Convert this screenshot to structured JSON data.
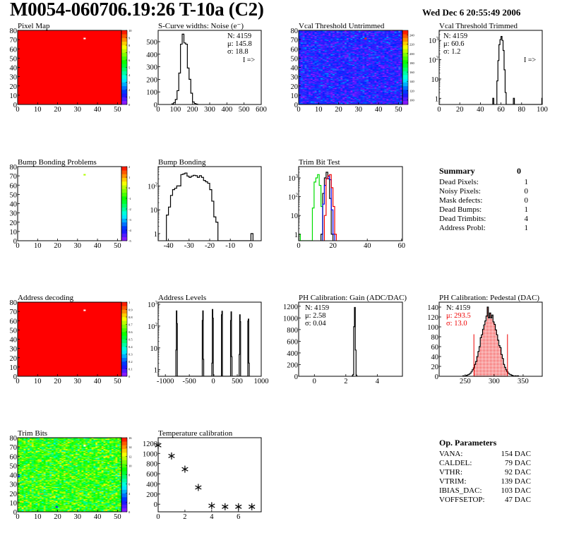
{
  "header": {
    "title": "M0054-060706.19:26 T-10a (C2)",
    "date": "Wed Dec  6 20:55:49 2006"
  },
  "summary": {
    "title": "Summary",
    "total": "0",
    "rows": [
      {
        "label": "Dead Pixels:",
        "value": "1"
      },
      {
        "label": "Noisy Pixels:",
        "value": "0"
      },
      {
        "label": "Mask defects:",
        "value": "0"
      },
      {
        "label": "Dead Bumps:",
        "value": "1"
      },
      {
        "label": "Dead Trimbits:",
        "value": "4"
      },
      {
        "label": "Address Probl:",
        "value": "1"
      }
    ]
  },
  "op_parameters": {
    "title": "Op. Parameters",
    "rows": [
      {
        "label": "VANA:",
        "value": "154 DAC"
      },
      {
        "label": "CALDEL:",
        "value": "79 DAC"
      },
      {
        "label": "VTHR:",
        "value": "92 DAC"
      },
      {
        "label": "VTRIM:",
        "value": "139 DAC"
      },
      {
        "label": "IBIAS_DAC:",
        "value": "103 DAC"
      },
      {
        "label": "VOFFSETOP:",
        "value": "47 DAC"
      }
    ]
  },
  "chart_data": [
    {
      "type": "heatmap",
      "title": "Pixel Map",
      "xlim": [
        0,
        52
      ],
      "ylim": [
        0,
        80
      ],
      "zlim": [
        0,
        10
      ],
      "xticks": [
        0,
        10,
        20,
        30,
        40,
        50
      ],
      "yticks": [
        0,
        10,
        20,
        30,
        40,
        50,
        60,
        70,
        80
      ],
      "palette_ticks": [
        0,
        1,
        2,
        3,
        4,
        5,
        6,
        7,
        8,
        9,
        10
      ],
      "fill_value": 10,
      "special_pixels": [
        {
          "col": 33,
          "row": 71,
          "value": 0
        }
      ]
    },
    {
      "type": "bar",
      "title": "S-Curve widths: Noise (e⁻)",
      "xlim": [
        0,
        600
      ],
      "ylim": [
        0,
        590
      ],
      "yscale": "linear",
      "xticks": [
        0,
        100,
        200,
        300,
        400,
        500,
        600
      ],
      "yticks": [
        0,
        100,
        200,
        300,
        400,
        500
      ],
      "stats": [
        "N: 4159",
        "μ: 145.8",
        "σ: 18.8"
      ],
      "overflow_note": "I =>",
      "series": [
        {
          "color": "#000000",
          "bin_width": 10,
          "bins": [
            [
              80,
              5
            ],
            [
              90,
              15
            ],
            [
              100,
              40
            ],
            [
              110,
              110
            ],
            [
              120,
              250
            ],
            [
              130,
              480
            ],
            [
              140,
              560
            ],
            [
              150,
              490
            ],
            [
              160,
              480
            ],
            [
              170,
              290
            ],
            [
              180,
              200
            ],
            [
              190,
              90
            ],
            [
              200,
              20
            ],
            [
              210,
              8
            ],
            [
              220,
              3
            ]
          ]
        }
      ]
    },
    {
      "type": "heatmap",
      "title": "Vcal Threshold Untrimmed",
      "xlim": [
        0,
        52
      ],
      "ylim": [
        0,
        80
      ],
      "zlim": [
        90,
        250
      ],
      "xticks": [
        0,
        10,
        20,
        30,
        40,
        50
      ],
      "yticks": [
        0,
        10,
        20,
        30,
        40,
        50,
        60,
        70,
        80
      ],
      "palette_ticks": [
        100,
        120,
        140,
        160,
        180,
        200,
        220,
        240
      ],
      "typical_value": 110,
      "spread": 9,
      "special_pixels": [
        {
          "col": 33,
          "row": 71,
          "value": 245
        }
      ]
    },
    {
      "type": "bar",
      "title": "Vcal Threshold Trimmed",
      "xlim": [
        0,
        100
      ],
      "ylim": [
        0.48,
        3300
      ],
      "yscale": "log",
      "xticks": [
        0,
        20,
        40,
        60,
        80,
        100
      ],
      "yticks": [
        1,
        10,
        100,
        1000
      ],
      "stats": [
        "N: 4159",
        "μ: 60.6",
        "σ:  1.2"
      ],
      "overflow_note": "I =>",
      "series": [
        {
          "color": "#000000",
          "bin_width": 1,
          "bins": [
            [
              52,
              1
            ],
            [
              56,
              8
            ],
            [
              57,
              90
            ],
            [
              58,
              600
            ],
            [
              59,
              1100
            ],
            [
              60,
              1600
            ],
            [
              61,
              1000
            ],
            [
              62,
              300
            ],
            [
              63,
              30
            ],
            [
              64,
              2
            ],
            [
              72,
              1
            ],
            [
              99.6,
              1
            ]
          ]
        }
      ]
    },
    {
      "type": "heatmap",
      "title": "Bump Bonding Problems",
      "xlim": [
        0,
        52
      ],
      "ylim": [
        0,
        80
      ],
      "zlim": [
        -5,
        2
      ],
      "xticks": [
        0,
        10,
        20,
        30,
        40,
        50
      ],
      "yticks": [
        0,
        10,
        20,
        30,
        40,
        50,
        60,
        70,
        80
      ],
      "palette_ticks": [
        -5,
        -4,
        -3,
        -2,
        -1,
        0,
        1,
        2
      ],
      "fill_value": null,
      "special_pixels": [
        {
          "col": 33,
          "row": 71,
          "value": 0
        }
      ]
    },
    {
      "type": "bar",
      "title": "Bump Bonding",
      "xlim": [
        -45,
        5
      ],
      "ylim": [
        0.5,
        650
      ],
      "yscale": "log",
      "xticks": [
        -40,
        -30,
        -20,
        -10,
        0
      ],
      "yticks": [
        1,
        10,
        100
      ],
      "series": [
        {
          "color": "#000000",
          "bin_width": 1,
          "bins": [
            [
              -41,
              6
            ],
            [
              -40,
              13
            ],
            [
              -39,
              40
            ],
            [
              -38,
              70
            ],
            [
              -37,
              80
            ],
            [
              -36,
              100
            ],
            [
              -35,
              100
            ],
            [
              -34,
              300
            ],
            [
              -33,
              320
            ],
            [
              -32,
              350
            ],
            [
              -31,
              260
            ],
            [
              -30,
              230
            ],
            [
              -29,
              260
            ],
            [
              -28,
              280
            ],
            [
              -27,
              270
            ],
            [
              -26,
              230
            ],
            [
              -25,
              270
            ],
            [
              -24,
              230
            ],
            [
              -23,
              170
            ],
            [
              -22,
              150
            ],
            [
              -21,
              130
            ],
            [
              -20,
              70
            ],
            [
              -19,
              23
            ],
            [
              -18,
              5
            ],
            [
              -17,
              3
            ],
            [
              0,
              1
            ]
          ]
        }
      ]
    },
    {
      "type": "bar",
      "title": "Trim Bit Test",
      "xlim": [
        0,
        60.5
      ],
      "ylim": [
        0.45,
        4000
      ],
      "yscale": "log",
      "xticks": [
        0,
        20,
        40,
        60
      ],
      "yticks": [
        1,
        10,
        100,
        1000
      ],
      "series": [
        {
          "color": "#00dd00",
          "bin_width": 1,
          "bins": [
            [
              0,
              1
            ],
            [
              8,
              25
            ],
            [
              9,
              600
            ],
            [
              10,
              1000
            ],
            [
              11,
              1500
            ],
            [
              12,
              400
            ],
            [
              13,
              30
            ]
          ]
        },
        {
          "color": "#000000",
          "bin_width": 1,
          "bins": [
            [
              13,
              1
            ],
            [
              14,
              150
            ],
            [
              15,
              1000
            ],
            [
              16,
              2000
            ],
            [
              17,
              900
            ],
            [
              18,
              80
            ],
            [
              19,
              1
            ]
          ]
        },
        {
          "color": "#0000ee",
          "bin_width": 1,
          "bins": [
            [
              14,
              40
            ],
            [
              15,
              400
            ],
            [
              16,
              900
            ],
            [
              17,
              1200
            ],
            [
              18,
              800
            ],
            [
              19,
              20
            ],
            [
              20,
              1
            ]
          ]
        },
        {
          "color": "#ee0000",
          "bin_width": 1,
          "bins": [
            [
              15,
              10
            ],
            [
              16,
              900
            ],
            [
              17,
              1300
            ],
            [
              18,
              1500
            ],
            [
              19,
              300
            ],
            [
              20,
              30
            ],
            [
              21,
              1
            ]
          ]
        }
      ]
    },
    {
      "type": "heatmap",
      "title": "Address decoding",
      "xlim": [
        0,
        52
      ],
      "ylim": [
        0,
        80
      ],
      "zlim": [
        0,
        1
      ],
      "xticks": [
        0,
        10,
        20,
        30,
        40,
        50
      ],
      "yticks": [
        0,
        10,
        20,
        30,
        40,
        50,
        60,
        70,
        80
      ],
      "palette_ticks": [
        0,
        0.1,
        0.2,
        0.3,
        0.4,
        0.5,
        0.6,
        0.7,
        0.8,
        0.9,
        1
      ],
      "fill_value": 1,
      "special_pixels": [
        {
          "col": 33,
          "row": 71,
          "value": 0
        }
      ]
    },
    {
      "type": "bar",
      "title": "Address Levels",
      "xlim": [
        -1150,
        1000
      ],
      "ylim": [
        0.5,
        1250
      ],
      "yscale": "log",
      "xticks": [
        -1000,
        -500,
        0,
        500,
        1000
      ],
      "yticks": [
        1,
        10,
        100,
        1000
      ],
      "series": [
        {
          "color": "#000000",
          "bin_width": 10,
          "bins": [
            [
              -780,
              8
            ],
            [
              -770,
              500
            ],
            [
              -760,
              130
            ],
            [
              -230,
              180
            ],
            [
              -220,
              500
            ],
            [
              -210,
              3
            ],
            [
              -30,
              2
            ],
            [
              -20,
              580
            ],
            [
              -10,
              230
            ],
            [
              0,
              0.6
            ],
            [
              170,
              330
            ],
            [
              180,
              480
            ],
            [
              360,
              180
            ],
            [
              370,
              450
            ],
            [
              380,
              4
            ],
            [
              540,
              5
            ],
            [
              550,
              330
            ],
            [
              560,
              160
            ],
            [
              720,
              170
            ],
            [
              730,
              210
            ],
            [
              740,
              2
            ]
          ]
        }
      ]
    },
    {
      "type": "bar",
      "title": "PH Calibration: Gain (ADC/DAC)",
      "xlim": [
        -1,
        5.6
      ],
      "ylim": [
        0,
        1270
      ],
      "yscale": "linear",
      "xticks": [
        0,
        2,
        4
      ],
      "yticks": [
        0,
        200,
        400,
        600,
        800,
        1000,
        1200
      ],
      "stats": [
        "N: 4159",
        "μ: 2.58",
        "σ: 0.04"
      ],
      "series": [
        {
          "color": "#000000",
          "bin_width": 0.05,
          "bins": [
            [
              2.4,
              10
            ],
            [
              2.45,
              30
            ],
            [
              2.5,
              850
            ],
            [
              2.55,
              1180
            ],
            [
              2.6,
              450
            ],
            [
              2.65,
              20
            ]
          ]
        }
      ]
    },
    {
      "type": "bar",
      "title": "PH Calibration: Pedestal (DAC)",
      "xlim": [
        205,
        383
      ],
      "ylim": [
        0,
        150
      ],
      "yscale": "linear",
      "xticks": [
        250,
        300,
        350
      ],
      "yticks": [
        0,
        20,
        40,
        60,
        80,
        100,
        120,
        140
      ],
      "stats": [
        "N: 4159",
        "μ: 293.5",
        "σ: 13.0"
      ],
      "stats_fit_color": "#ee0000",
      "fit_range": [
        265,
        323
      ],
      "fit_color": "#ee0000",
      "series": [
        {
          "color": "#000000",
          "bin_width": 2,
          "bins": [
            [
              246,
              1
            ],
            [
              250,
              1
            ],
            [
              252,
              2
            ],
            [
              254,
              3
            ],
            [
              256,
              4
            ],
            [
              258,
              6
            ],
            [
              260,
              9
            ],
            [
              262,
              13
            ],
            [
              264,
              17
            ],
            [
              266,
              24
            ],
            [
              268,
              30
            ],
            [
              270,
              40
            ],
            [
              272,
              50
            ],
            [
              274,
              60
            ],
            [
              276,
              78
            ],
            [
              278,
              84
            ],
            [
              280,
              95
            ],
            [
              282,
              104
            ],
            [
              284,
              112
            ],
            [
              286,
              122
            ],
            [
              288,
              140
            ],
            [
              290,
              118
            ],
            [
              292,
              128
            ],
            [
              294,
              118
            ],
            [
              296,
              124
            ],
            [
              298,
              110
            ],
            [
              300,
              105
            ],
            [
              302,
              94
            ],
            [
              304,
              84
            ],
            [
              306,
              73
            ],
            [
              308,
              62
            ],
            [
              310,
              58
            ],
            [
              312,
              44
            ],
            [
              314,
              36
            ],
            [
              316,
              24
            ],
            [
              318,
              18
            ],
            [
              320,
              13
            ],
            [
              322,
              9
            ],
            [
              324,
              6
            ],
            [
              326,
              4
            ],
            [
              328,
              3
            ],
            [
              330,
              2
            ],
            [
              332,
              1
            ],
            [
              336,
              1
            ],
            [
              340,
              1
            ]
          ]
        }
      ]
    },
    {
      "type": "heatmap",
      "title": "Trim Bits",
      "xlim": [
        0,
        52
      ],
      "ylim": [
        0,
        80
      ],
      "zlim": [
        0,
        16
      ],
      "xticks": [
        0,
        10,
        20,
        30,
        40,
        50
      ],
      "yticks": [
        0,
        10,
        20,
        30,
        40,
        50,
        60,
        70,
        80
      ],
      "palette_ticks": [
        0,
        2,
        4,
        6,
        8,
        10,
        12,
        14,
        16
      ],
      "typical_value": 9.5,
      "spread": 1.6,
      "special_pixels": [
        {
          "col": 33,
          "row": 71,
          "value": -1
        },
        {
          "col": 0,
          "row": 38,
          "value": 3
        },
        {
          "col": 19,
          "row": 5,
          "value": 2
        }
      ]
    },
    {
      "type": "scatter",
      "title": "Temperature calibration",
      "xlim": [
        0,
        7.7
      ],
      "ylim": [
        -150,
        1310
      ],
      "xticks": [
        0,
        2,
        4,
        6
      ],
      "yticks": [
        0,
        200,
        400,
        600,
        800,
        1000,
        1200
      ],
      "marker": "asterisk",
      "x": [
        0,
        1,
        2,
        3,
        4,
        5,
        6,
        7
      ],
      "y": [
        1160,
        950,
        690,
        330,
        -30,
        -50,
        -50,
        -50
      ]
    }
  ]
}
